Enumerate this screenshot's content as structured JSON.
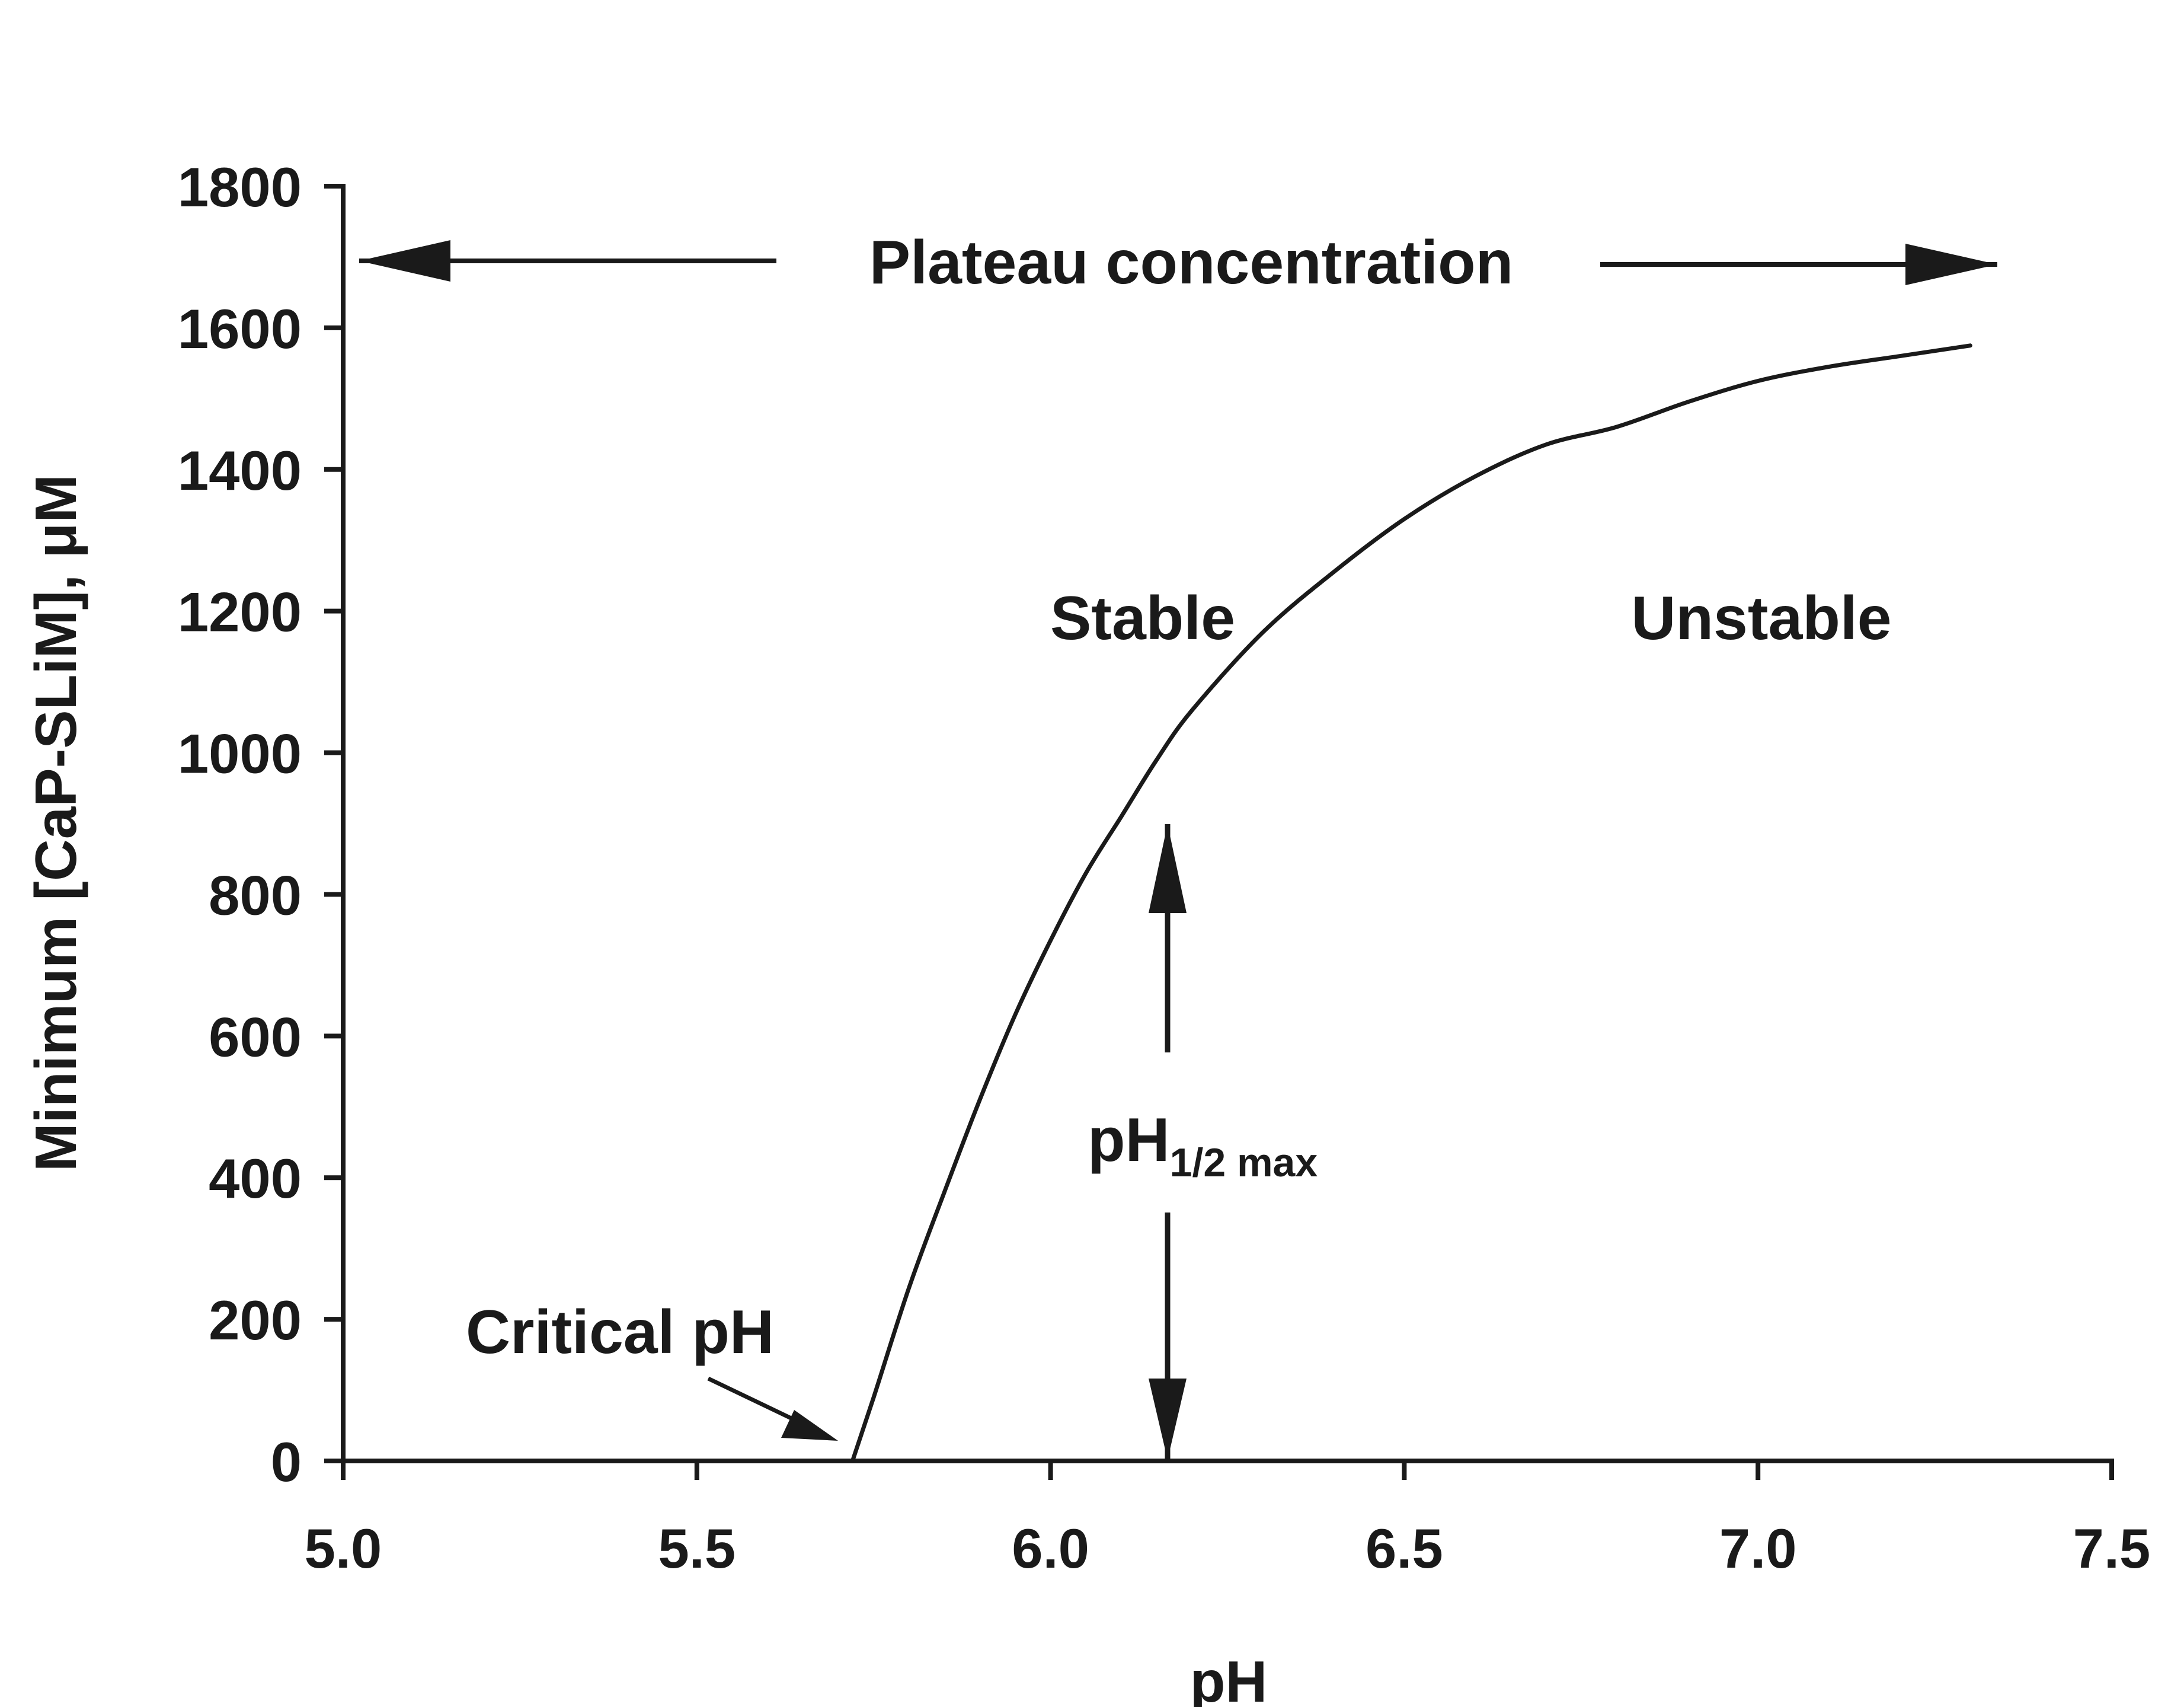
{
  "chart_data": {
    "type": "line",
    "xlabel": "pH",
    "ylabel": "Minimum [CaP-SLiM], μM",
    "xlim": [
      5.0,
      7.5
    ],
    "ylim": [
      0,
      1800
    ],
    "x_ticks": [
      "5.0",
      "5.5",
      "6.0",
      "6.5",
      "7.0",
      "7.5"
    ],
    "y_ticks": [
      "0",
      "200",
      "400",
      "600",
      "800",
      "1000",
      "1200",
      "1400",
      "1600",
      "1800"
    ],
    "grid": false,
    "legend": "none",
    "series": [
      {
        "color": "#1a1a1a",
        "x": [
          5.72,
          5.75,
          5.8,
          5.85,
          5.9,
          5.95,
          6.0,
          6.05,
          6.1,
          6.15,
          6.2,
          6.3,
          6.4,
          6.5,
          6.6,
          6.7,
          6.8,
          6.9,
          7.0,
          7.1,
          7.2,
          7.3
        ],
        "y": [
          0,
          90,
          245,
          380,
          510,
          630,
          735,
          830,
          910,
          990,
          1060,
          1170,
          1255,
          1330,
          1390,
          1435,
          1460,
          1495,
          1525,
          1545,
          1560,
          1575
        ]
      }
    ],
    "annotations": {
      "plateau": {
        "text": "Plateau concentration",
        "y": 1700,
        "x_range": [
          5.0,
          7.33
        ]
      },
      "stable": {
        "text": "Stable",
        "x": 6.13,
        "y": 1190
      },
      "unstable": {
        "text": "Unstable",
        "x": 7.0,
        "y": 1190
      },
      "half_max": {
        "text": "pH",
        "sub": "1/2 max",
        "x": 6.16,
        "y_top": 900,
        "y_bottom": 0
      },
      "critical": {
        "text": "Critical pH",
        "x": 5.71,
        "y": 0
      }
    }
  }
}
